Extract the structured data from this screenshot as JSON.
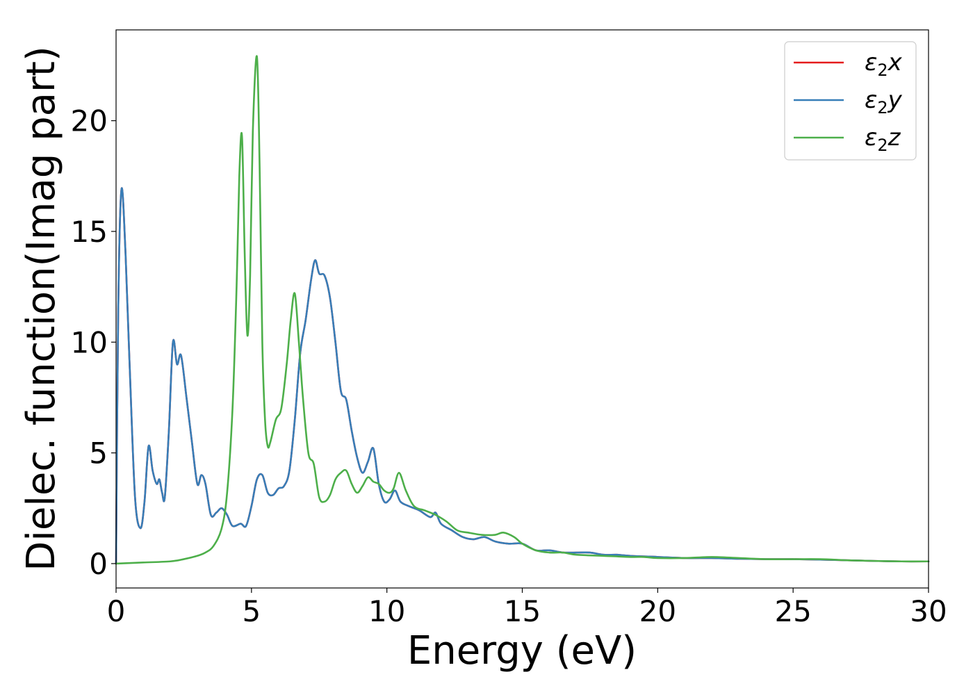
{
  "chart_data": {
    "type": "line",
    "title": "",
    "xlabel": "Energy (eV)",
    "ylabel": "Dielec. function(Imag part)",
    "xlim": [
      0,
      30
    ],
    "ylim": [
      -1.1,
      24.1
    ],
    "xticks": [
      0,
      5,
      10,
      15,
      20,
      25,
      30
    ],
    "yticks": [
      0,
      5,
      10,
      15,
      20
    ],
    "grid": false,
    "legend_position": "top-right",
    "series": [
      {
        "name": "ε₂x",
        "legend_base": "ε",
        "legend_sub": "2",
        "legend_var": "x",
        "color": "#e41a1c",
        "x": [
          0,
          0.08,
          0.2,
          0.35,
          0.5,
          0.7,
          0.9,
          1.05,
          1.2,
          1.35,
          1.5,
          1.6,
          1.7,
          1.8,
          1.95,
          2.1,
          2.25,
          2.4,
          2.6,
          2.8,
          3.0,
          3.15,
          3.3,
          3.5,
          3.7,
          3.9,
          4.1,
          4.3,
          4.6,
          4.8,
          5.0,
          5.2,
          5.4,
          5.6,
          5.8,
          6.0,
          6.2,
          6.4,
          6.6,
          6.8,
          7.0,
          7.2,
          7.35,
          7.5,
          7.7,
          7.9,
          8.1,
          8.3,
          8.5,
          8.7,
          8.9,
          9.1,
          9.3,
          9.5,
          9.7,
          9.9,
          10.1,
          10.3,
          10.5,
          10.8,
          11.2,
          11.6,
          11.8,
          12.0,
          12.4,
          12.8,
          13.2,
          13.6,
          14.0,
          14.5,
          15.0,
          15.5,
          16.0,
          16.5,
          17.0,
          17.5,
          18.0,
          18.5,
          19.0,
          20.0,
          21.0,
          22.0,
          23.0,
          24.0,
          25.0,
          26.0,
          27.0,
          28.0,
          29.0,
          30.0
        ],
        "y": [
          0,
          11.5,
          16.9,
          14.0,
          9.0,
          3.0,
          1.6,
          2.8,
          5.3,
          4.2,
          3.6,
          3.8,
          3.2,
          3.0,
          6.0,
          10.0,
          9.0,
          9.4,
          7.5,
          5.5,
          3.6,
          4.0,
          3.6,
          2.2,
          2.3,
          2.5,
          2.2,
          1.7,
          1.8,
          1.7,
          2.6,
          3.8,
          4.0,
          3.2,
          3.1,
          3.4,
          3.5,
          4.2,
          6.5,
          9.5,
          11.0,
          12.8,
          13.7,
          13.1,
          13.0,
          12.0,
          10.0,
          7.8,
          7.4,
          6.0,
          4.8,
          4.1,
          4.6,
          5.2,
          3.6,
          2.8,
          2.9,
          3.3,
          2.8,
          2.6,
          2.4,
          2.1,
          2.3,
          1.8,
          1.5,
          1.2,
          1.1,
          1.2,
          1.0,
          0.9,
          0.9,
          0.6,
          0.6,
          0.5,
          0.5,
          0.5,
          0.4,
          0.4,
          0.35,
          0.3,
          0.25,
          0.25,
          0.22,
          0.2,
          0.2,
          0.18,
          0.15,
          0.12,
          0.1,
          0.1
        ]
      },
      {
        "name": "ε₂y",
        "legend_base": "ε",
        "legend_sub": "2",
        "legend_var": "y",
        "color": "#377eb8",
        "x": [
          0,
          0.08,
          0.2,
          0.35,
          0.5,
          0.7,
          0.9,
          1.05,
          1.2,
          1.35,
          1.5,
          1.6,
          1.7,
          1.8,
          1.95,
          2.1,
          2.25,
          2.4,
          2.6,
          2.8,
          3.0,
          3.15,
          3.3,
          3.5,
          3.7,
          3.9,
          4.1,
          4.3,
          4.6,
          4.8,
          5.0,
          5.2,
          5.4,
          5.6,
          5.8,
          6.0,
          6.2,
          6.4,
          6.6,
          6.8,
          7.0,
          7.2,
          7.35,
          7.5,
          7.7,
          7.9,
          8.1,
          8.3,
          8.5,
          8.7,
          8.9,
          9.1,
          9.3,
          9.5,
          9.7,
          9.9,
          10.1,
          10.3,
          10.5,
          10.8,
          11.2,
          11.6,
          11.8,
          12.0,
          12.4,
          12.8,
          13.2,
          13.6,
          14.0,
          14.5,
          15.0,
          15.5,
          16.0,
          16.5,
          17.0,
          17.5,
          18.0,
          18.5,
          19.0,
          20.0,
          21.0,
          22.0,
          23.0,
          24.0,
          25.0,
          26.0,
          27.0,
          28.0,
          29.0,
          30.0
        ],
        "y": [
          0,
          11.5,
          16.9,
          14.0,
          9.0,
          3.0,
          1.6,
          2.8,
          5.3,
          4.2,
          3.6,
          3.8,
          3.2,
          3.0,
          6.0,
          10.0,
          9.0,
          9.4,
          7.5,
          5.5,
          3.6,
          4.0,
          3.6,
          2.2,
          2.3,
          2.5,
          2.2,
          1.7,
          1.8,
          1.7,
          2.6,
          3.8,
          4.0,
          3.2,
          3.1,
          3.4,
          3.5,
          4.2,
          6.5,
          9.5,
          11.0,
          12.8,
          13.7,
          13.1,
          13.0,
          12.0,
          10.0,
          7.8,
          7.4,
          6.0,
          4.8,
          4.1,
          4.6,
          5.2,
          3.6,
          2.8,
          2.9,
          3.3,
          2.8,
          2.6,
          2.4,
          2.1,
          2.3,
          1.8,
          1.5,
          1.2,
          1.1,
          1.2,
          1.0,
          0.9,
          0.9,
          0.6,
          0.6,
          0.5,
          0.5,
          0.5,
          0.4,
          0.4,
          0.35,
          0.3,
          0.25,
          0.25,
          0.22,
          0.2,
          0.2,
          0.18,
          0.15,
          0.12,
          0.1,
          0.1
        ]
      },
      {
        "name": "ε₂z",
        "legend_base": "ε",
        "legend_sub": "2",
        "legend_var": "z",
        "color": "#4daf4a",
        "x": [
          0,
          1.0,
          2.0,
          2.5,
          3.0,
          3.3,
          3.6,
          3.9,
          4.1,
          4.3,
          4.45,
          4.55,
          4.65,
          4.75,
          4.85,
          4.95,
          5.05,
          5.2,
          5.3,
          5.4,
          5.5,
          5.6,
          5.7,
          5.9,
          6.1,
          6.3,
          6.45,
          6.6,
          6.75,
          6.9,
          7.1,
          7.3,
          7.5,
          7.7,
          7.9,
          8.1,
          8.3,
          8.5,
          8.7,
          8.9,
          9.1,
          9.3,
          9.5,
          9.7,
          9.9,
          10.1,
          10.25,
          10.45,
          10.7,
          11.0,
          11.4,
          11.8,
          12.2,
          12.6,
          13.0,
          13.5,
          14.0,
          14.3,
          14.7,
          15.0,
          15.5,
          16.0,
          16.5,
          17.0,
          18.0,
          19.0,
          19.5,
          20.0,
          21.0,
          22.0,
          23.0,
          24.0,
          25.0,
          26.0,
          27.0,
          28.0,
          29.0,
          30.0
        ],
        "y": [
          0,
          0.05,
          0.1,
          0.2,
          0.35,
          0.5,
          0.8,
          1.6,
          3.2,
          7.0,
          12.5,
          17.5,
          19.3,
          14.0,
          10.3,
          13.0,
          19.5,
          22.9,
          18.0,
          10.0,
          6.5,
          5.3,
          5.5,
          6.5,
          7.0,
          9.0,
          11.0,
          12.2,
          10.0,
          7.5,
          5.0,
          4.5,
          3.0,
          2.8,
          3.1,
          3.8,
          4.1,
          4.2,
          3.6,
          3.2,
          3.5,
          3.9,
          3.7,
          3.6,
          3.3,
          3.2,
          3.4,
          4.1,
          3.3,
          2.6,
          2.4,
          2.2,
          1.9,
          1.5,
          1.4,
          1.3,
          1.3,
          1.4,
          1.2,
          0.9,
          0.6,
          0.5,
          0.5,
          0.4,
          0.35,
          0.3,
          0.3,
          0.25,
          0.25,
          0.3,
          0.25,
          0.2,
          0.2,
          0.2,
          0.15,
          0.12,
          0.1,
          0.1
        ]
      }
    ]
  }
}
